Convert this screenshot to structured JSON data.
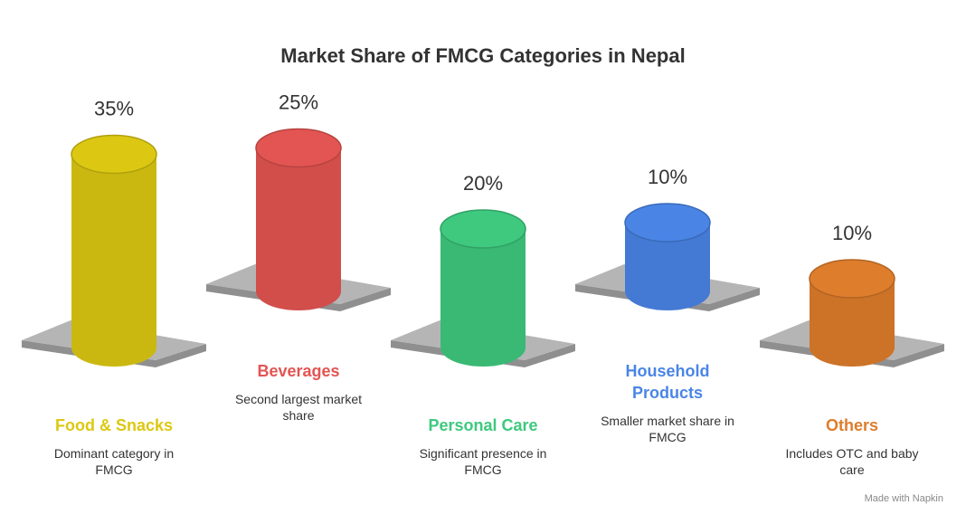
{
  "chart_data": {
    "type": "cylinder-bar",
    "title": "Market Share of FMCG Categories in Nepal",
    "categories": [
      "Food & Snacks",
      "Beverages",
      "Personal Care",
      "Household Products",
      "Others"
    ],
    "values": [
      35,
      25,
      20,
      10,
      10
    ],
    "value_labels": [
      "35%",
      "25%",
      "20%",
      "10%",
      "10%"
    ],
    "descriptions": [
      "Dominant category in FMCG",
      "Second largest market share",
      "Significant presence in FMCG",
      "Smaller market share in FMCG",
      "Includes OTC and baby care"
    ],
    "colors": [
      "#dcc812",
      "#e35552",
      "#3ec97e",
      "#4a85e6",
      "#de7d2c"
    ],
    "footer": "Made with Napkin"
  }
}
